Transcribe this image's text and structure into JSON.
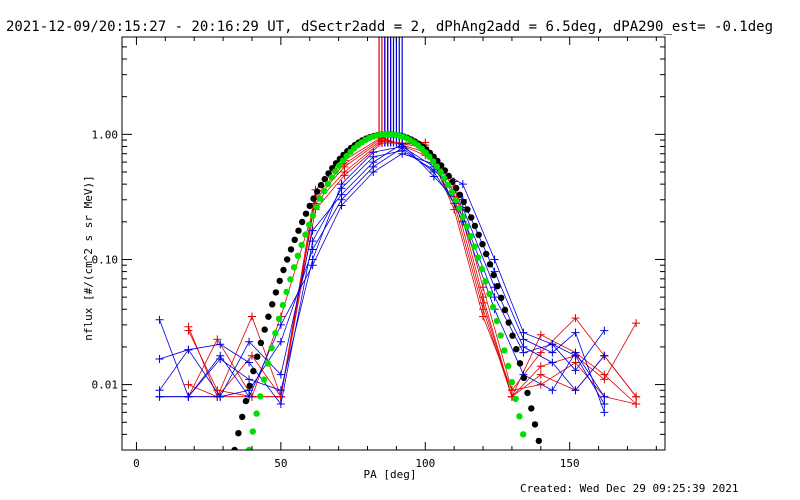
{
  "chart_data": {
    "type": "scatter",
    "title": "2021-12-09/20:15:27 - 20:16:29 UT, dSectr2add = 2, dPhAng2add = 6.5deg, dPA290_est= -0.1deg",
    "xlabel": "PA [deg]",
    "ylabel": "nflux [#/(cm^2 s sr MeV)]",
    "xlim": [
      -5,
      183
    ],
    "ylim": [
      0.003,
      6
    ],
    "yscale": "log",
    "x_ticks": [
      0,
      50,
      100,
      150
    ],
    "y_ticks": [
      {
        "value": 1.0,
        "label": "1.00"
      },
      {
        "value": 0.1,
        "label": "0.10"
      },
      {
        "value": 0.01,
        "label": "0.01"
      }
    ],
    "vertical_lines": {
      "red": [
        84,
        85,
        86,
        87,
        88
      ],
      "blue": [
        86,
        87,
        88,
        89,
        90,
        91,
        92
      ]
    },
    "colors": {
      "red": "#e00000",
      "blue": "#0000e0",
      "black": "#000000",
      "green": "#00e000"
    },
    "fits": [
      {
        "color": "black",
        "center": 87,
        "halfwidth": 53,
        "ymin": 0.003
      },
      {
        "color": "green",
        "center": 87,
        "halfwidth": 48,
        "ymin": 0.003
      }
    ],
    "series": [
      {
        "color": "red",
        "x": [
          18,
          28,
          40,
          50,
          62,
          72,
          85,
          100,
          110,
          120,
          130,
          140,
          152,
          162,
          173
        ],
        "y": [
          0.029,
          0.008,
          0.008,
          0.008,
          0.36,
          0.62,
          0.95,
          0.68,
          0.42,
          0.06,
          0.009,
          0.018,
          0.034,
          0.017,
          0.008
        ]
      },
      {
        "color": "red",
        "x": [
          18,
          28,
          40,
          50,
          62,
          72,
          85,
          100,
          110,
          120,
          130,
          140,
          152,
          162,
          173
        ],
        "y": [
          0.027,
          0.009,
          0.008,
          0.008,
          0.32,
          0.58,
          0.93,
          0.72,
          0.38,
          0.05,
          0.008,
          0.025,
          0.018,
          0.012,
          0.007
        ]
      },
      {
        "color": "red",
        "x": [
          18,
          28,
          40,
          50,
          62,
          72,
          85,
          100,
          110,
          120,
          130,
          140,
          152,
          162,
          173
        ],
        "y": [
          0.01,
          0.008,
          0.035,
          0.008,
          0.3,
          0.55,
          0.9,
          0.78,
          0.32,
          0.045,
          0.008,
          0.014,
          0.017,
          0.011,
          0.031
        ]
      },
      {
        "color": "red",
        "x": [
          18,
          28,
          40,
          50,
          62,
          72,
          85,
          100,
          110,
          120,
          130,
          140,
          152,
          162,
          173
        ],
        "y": [
          0.008,
          0.023,
          0.008,
          0.035,
          0.28,
          0.5,
          0.88,
          0.82,
          0.28,
          0.04,
          0.008,
          0.012,
          0.009,
          0.017,
          0.008
        ]
      },
      {
        "color": "red",
        "x": [
          18,
          28,
          40,
          50,
          62,
          72,
          85,
          100,
          110,
          120,
          130,
          140,
          152,
          162,
          173
        ],
        "y": [
          0.008,
          0.008,
          0.017,
          0.008,
          0.25,
          0.47,
          0.85,
          0.86,
          0.25,
          0.035,
          0.009,
          0.01,
          0.015,
          0.008,
          0.007
        ]
      },
      {
        "color": "blue",
        "x": [
          8,
          18,
          29,
          39,
          50,
          61,
          71,
          82,
          92,
          103,
          113,
          124,
          134,
          144,
          152,
          162
        ],
        "y": [
          0.033,
          0.008,
          0.016,
          0.011,
          0.009,
          0.1,
          0.4,
          0.72,
          0.8,
          0.55,
          0.4,
          0.1,
          0.026,
          0.021,
          0.017,
          0.007
        ]
      },
      {
        "color": "blue",
        "x": [
          8,
          18,
          29,
          39,
          50,
          61,
          71,
          82,
          92,
          103,
          113,
          124,
          134,
          144,
          152,
          162
        ],
        "y": [
          0.016,
          0.019,
          0.021,
          0.015,
          0.007,
          0.14,
          0.37,
          0.66,
          0.74,
          0.52,
          0.3,
          0.08,
          0.023,
          0.018,
          0.026,
          0.006
        ]
      },
      {
        "color": "blue",
        "x": [
          8,
          18,
          29,
          39,
          50,
          61,
          71,
          82,
          92,
          103,
          113,
          124,
          134,
          144,
          152,
          162
        ],
        "y": [
          0.008,
          0.008,
          0.008,
          0.022,
          0.012,
          0.17,
          0.33,
          0.6,
          0.84,
          0.46,
          0.26,
          0.06,
          0.02,
          0.015,
          0.009,
          0.017
        ]
      },
      {
        "color": "blue",
        "x": [
          8,
          18,
          29,
          39,
          50,
          61,
          71,
          82,
          92,
          103,
          113,
          124,
          134,
          144,
          152,
          162
        ],
        "y": [
          0.009,
          0.019,
          0.008,
          0.009,
          0.022,
          0.12,
          0.3,
          0.55,
          0.78,
          0.5,
          0.22,
          0.05,
          0.018,
          0.021,
          0.013,
          0.027
        ]
      },
      {
        "color": "blue",
        "x": [
          8,
          18,
          29,
          39,
          50,
          61,
          71,
          82,
          92,
          103,
          113,
          124,
          134,
          144,
          152,
          162
        ],
        "y": [
          0.008,
          0.008,
          0.017,
          0.008,
          0.03,
          0.09,
          0.27,
          0.5,
          0.7,
          0.58,
          0.2,
          0.04,
          0.012,
          0.009,
          0.018,
          0.008
        ]
      }
    ]
  },
  "footer": {
    "created": "Created: Wed Dec 29 09:25:39 2021"
  }
}
